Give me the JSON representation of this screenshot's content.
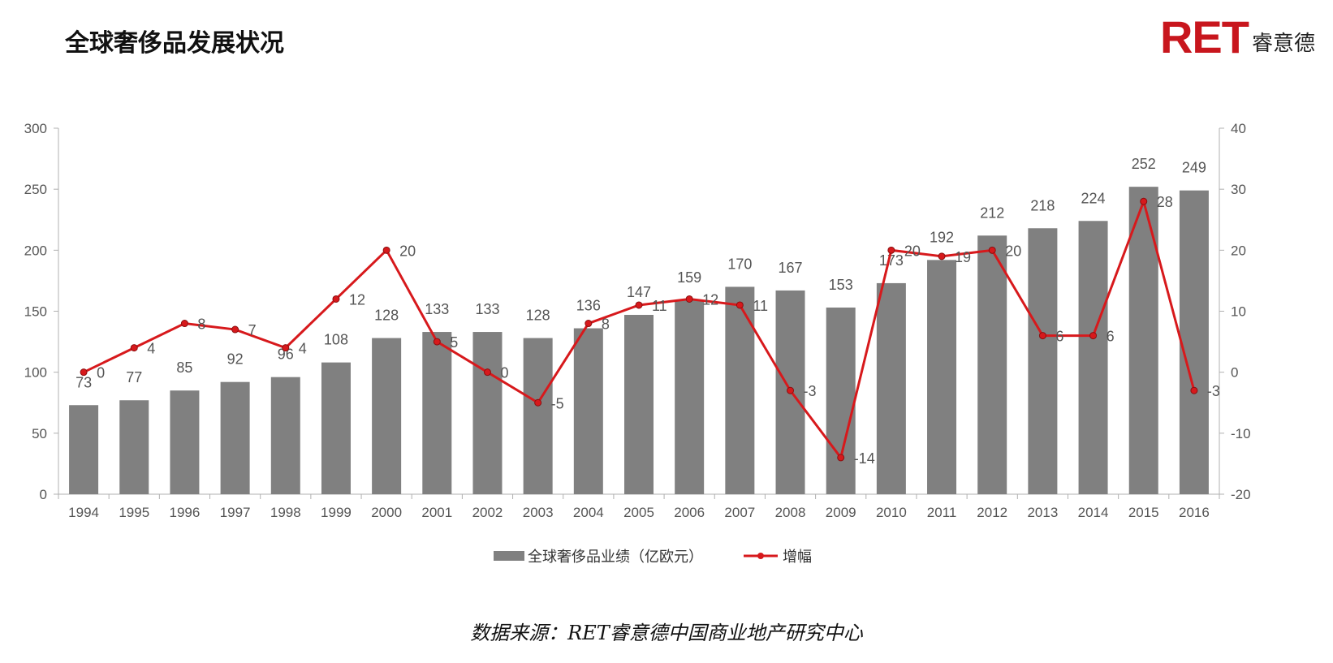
{
  "page": {
    "title": "全球奢侈品发展状况",
    "logo": {
      "mark": "RET",
      "text": "睿意德",
      "color": "#c8161d"
    },
    "source": "数据来源：RET睿意德中国商业地产研究中心"
  },
  "chart_data": {
    "type": "bar",
    "categories": [
      "1994",
      "1995",
      "1996",
      "1997",
      "1998",
      "1999",
      "2000",
      "2001",
      "2002",
      "2003",
      "2004",
      "2005",
      "2006",
      "2007",
      "2008",
      "2009",
      "2010",
      "2011",
      "2012",
      "2013",
      "2014",
      "2015",
      "2016"
    ],
    "series": [
      {
        "name": "全球奢侈品业绩（亿欧元）",
        "type": "bar",
        "axis": "left",
        "color": "#808080",
        "values": [
          73,
          77,
          85,
          92,
          96,
          108,
          128,
          133,
          133,
          128,
          136,
          147,
          159,
          170,
          167,
          153,
          173,
          192,
          212,
          218,
          224,
          252,
          249
        ]
      },
      {
        "name": "增幅",
        "type": "line",
        "axis": "right",
        "color": "#d7191c",
        "values": [
          0,
          4,
          8,
          7,
          4,
          12,
          20,
          5,
          0,
          -5,
          8,
          11,
          12,
          11,
          -3,
          -14,
          20,
          19,
          20,
          6,
          6,
          28,
          -3
        ]
      }
    ],
    "y_left": {
      "min": 0,
      "max": 300,
      "ticks": [
        0,
        50,
        100,
        150,
        200,
        250,
        300
      ]
    },
    "y_right": {
      "min": -20,
      "max": 40,
      "ticks": [
        -20,
        -10,
        0,
        10,
        20,
        30,
        40
      ]
    },
    "grid": false,
    "legend": "bottom"
  }
}
